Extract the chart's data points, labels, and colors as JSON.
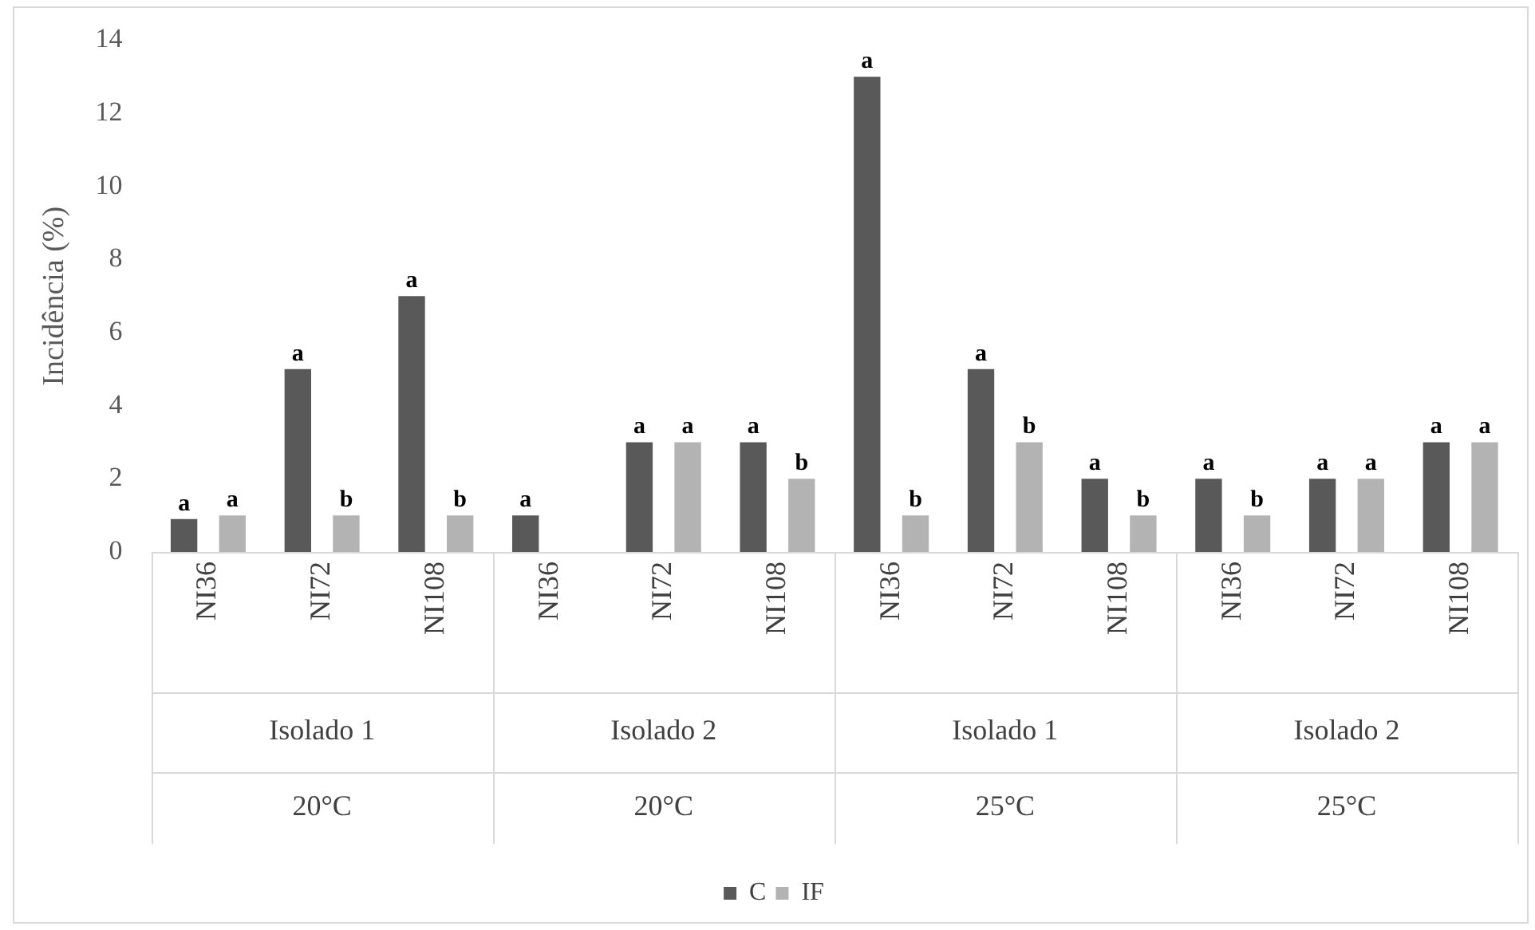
{
  "chart_data": {
    "type": "bar",
    "ylabel": "Incidência (%)",
    "categories": [
      "NI36",
      "NI72",
      "NI108",
      "NI36",
      "NI72",
      "NI108",
      "NI36",
      "NI72",
      "NI108",
      "NI36",
      "NI72",
      "NI108"
    ],
    "series": [
      {
        "name": "C",
        "color": "#595959",
        "values": [
          0.9,
          5,
          7,
          1,
          3,
          3,
          13,
          5,
          2,
          2,
          2,
          3
        ],
        "value_labels": [
          "a",
          "a",
          "a",
          "a",
          "a",
          "a",
          "a",
          "a",
          "a",
          "a",
          "a",
          "a"
        ]
      },
      {
        "name": "IF",
        "color": "#b3b3b3",
        "values": [
          1,
          1,
          1,
          0,
          3,
          2,
          1,
          3,
          1,
          1,
          2,
          3
        ],
        "value_labels": [
          "a",
          "b",
          "b",
          null,
          "a",
          "b",
          "b",
          "b",
          "b",
          "b",
          "a",
          "a"
        ]
      }
    ],
    "annotations": [
      "Isolado 1",
      "Isolado 2",
      "Isolado 1",
      "Isolado 2",
      "20°C",
      "20°C",
      "25°C",
      "25°C"
    ],
    "ylim": [
      0,
      14
    ],
    "yticks": [
      0,
      2,
      4,
      6,
      8,
      10,
      12,
      14
    ],
    "grid": false,
    "legend": "bottom"
  }
}
